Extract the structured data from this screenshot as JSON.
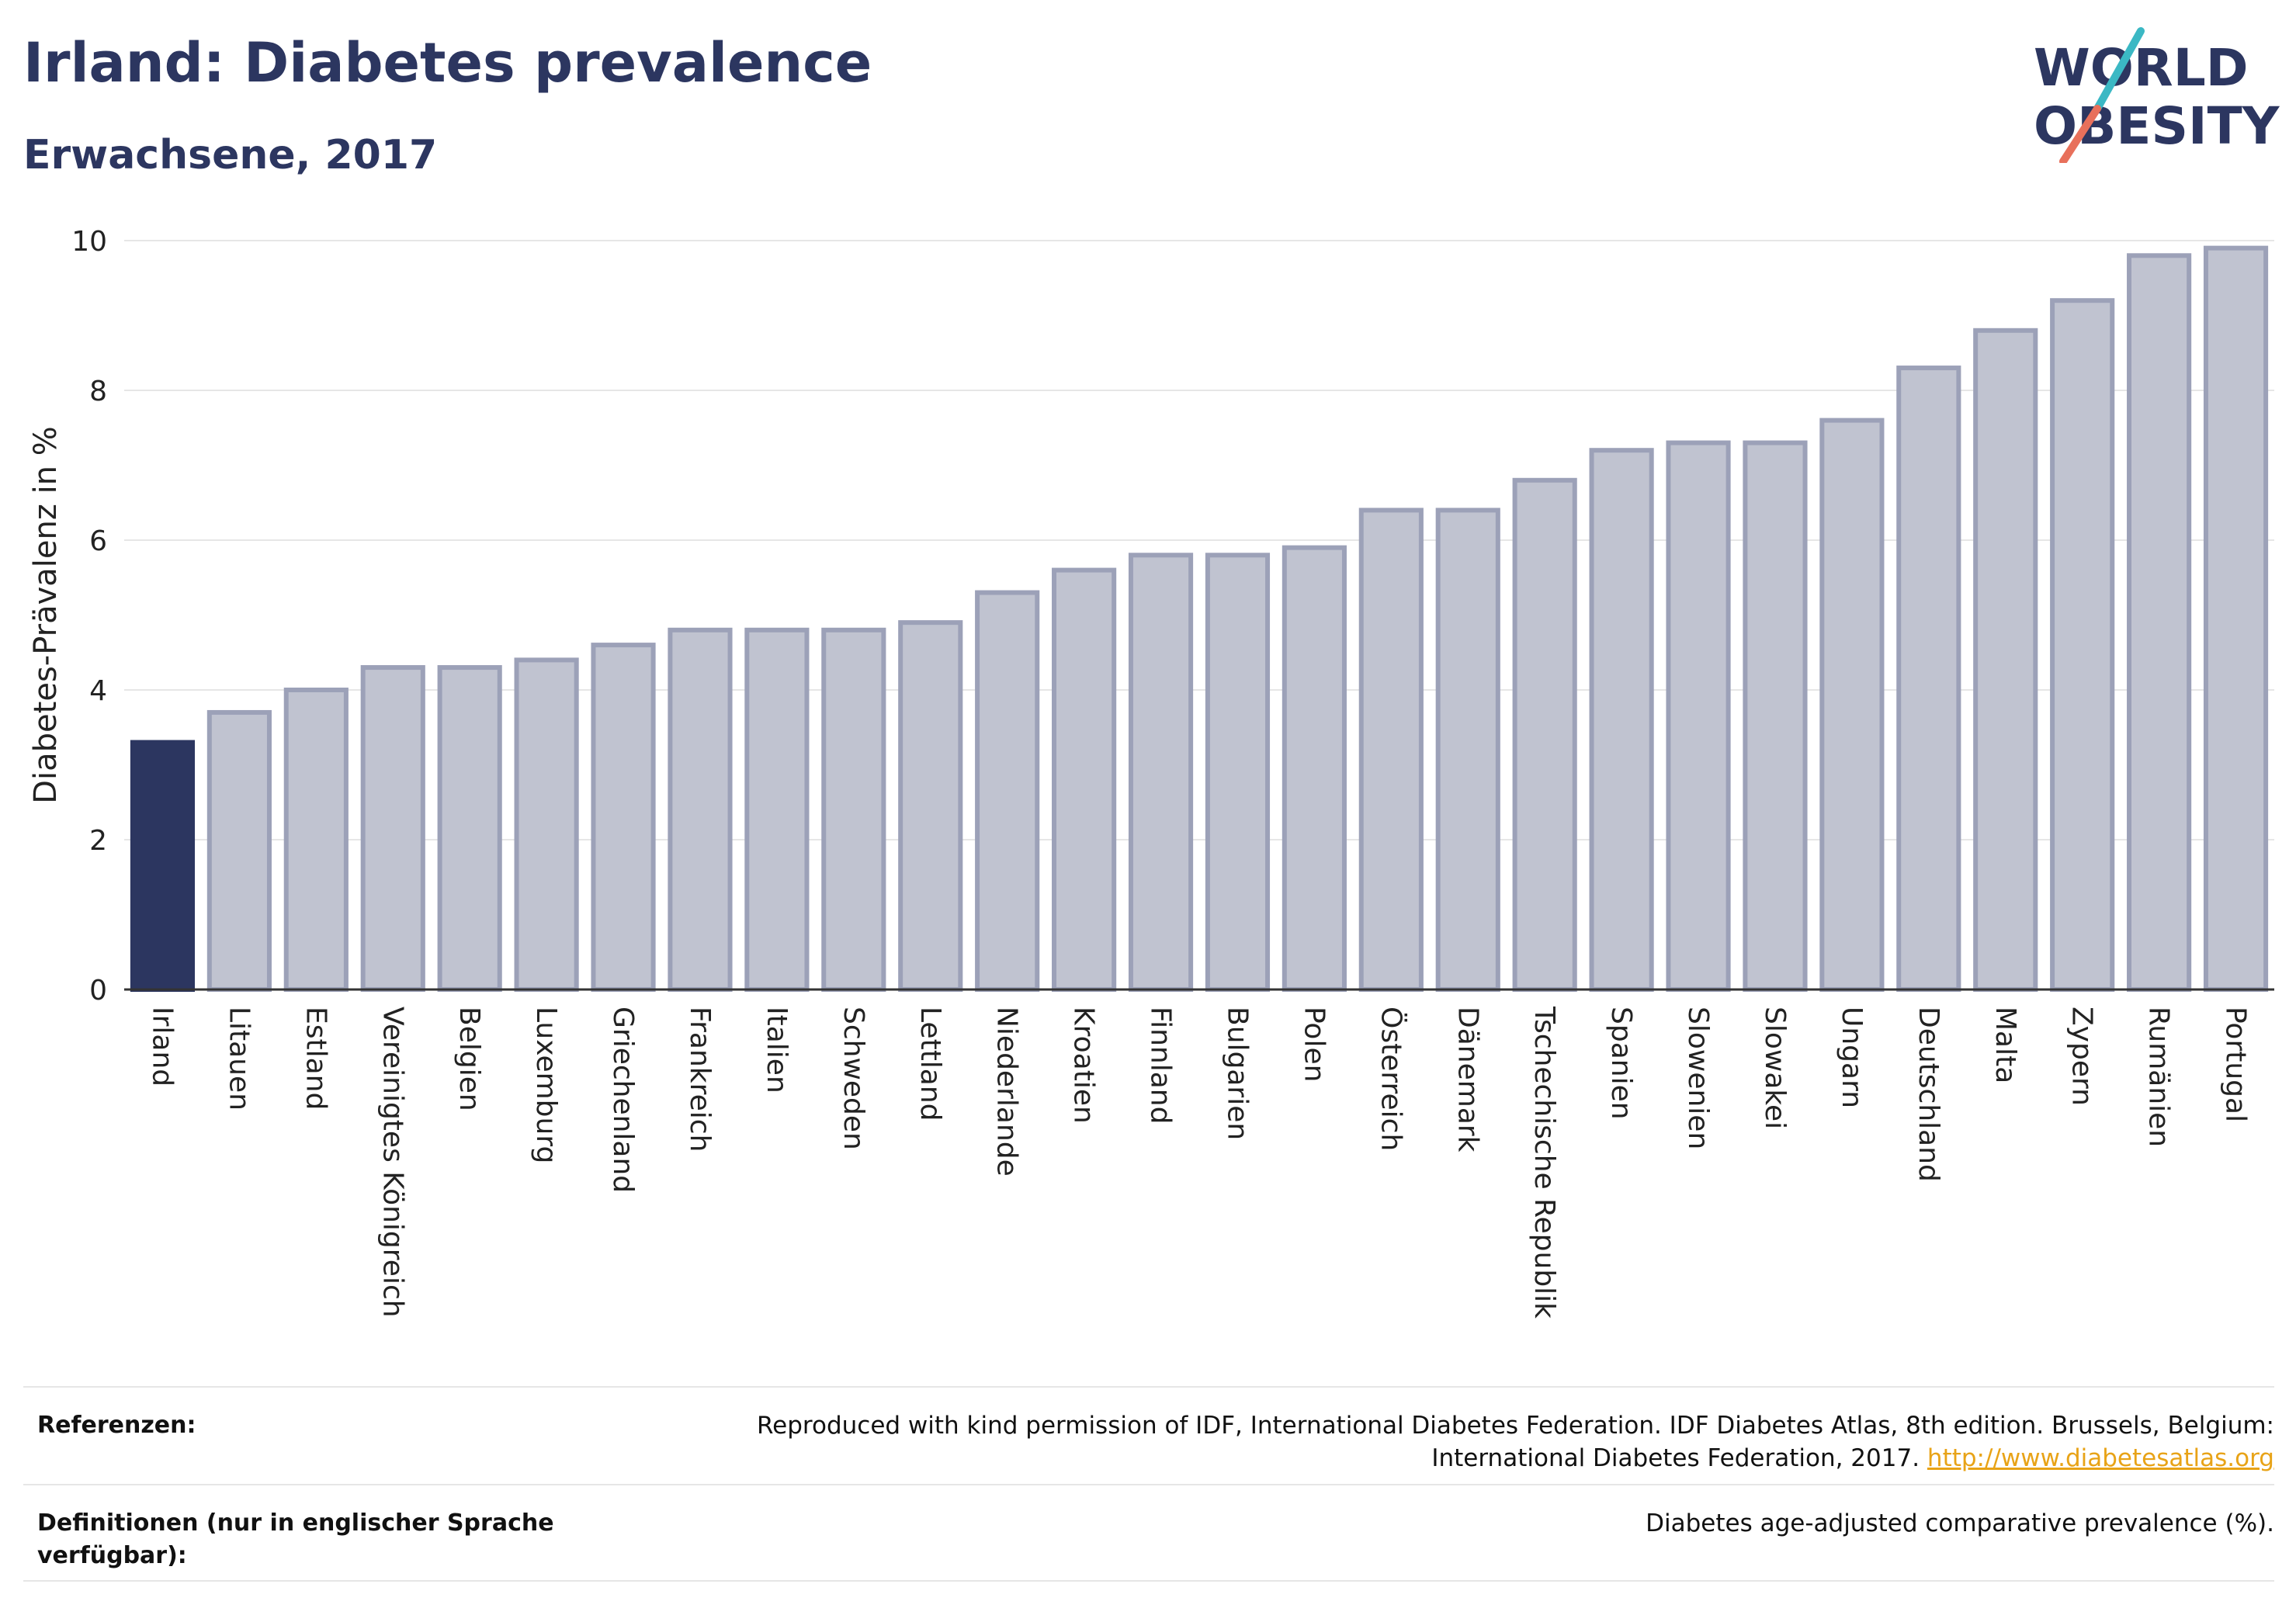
{
  "header": {
    "title": "Irland: Diabetes prevalence",
    "subtitle": "Erwachsene, 2017"
  },
  "logo": {
    "line1": "WORLD",
    "line2": "OBESITY",
    "colors": {
      "text": "#2c3660",
      "slash_top": "#3bb8c4",
      "slash_bottom": "#e8705b"
    }
  },
  "chart_data": {
    "type": "bar",
    "ylabel": "Diabetes-Prävalenz in %",
    "xlabel": "",
    "ylim": [
      0,
      10
    ],
    "yticks": [
      0,
      2,
      4,
      6,
      8,
      10
    ],
    "grid": true,
    "highlight": "Irland",
    "colors": {
      "highlight": "#2c3660",
      "bar": "#c0c3d0",
      "bar_border": "#9ca1b8"
    },
    "categories": [
      "Irland",
      "Litauen",
      "Estland",
      "Vereinigtes Königreich",
      "Belgien",
      "Luxemburg",
      "Griechenland",
      "Frankreich",
      "Italien",
      "Schweden",
      "Lettland",
      "Niederlande",
      "Kroatien",
      "Finnland",
      "Bulgarien",
      "Polen",
      "Österreich",
      "Dänemark",
      "Tschechische Republik",
      "Spanien",
      "Slowenien",
      "Slowakei",
      "Ungarn",
      "Deutschland",
      "Malta",
      "Zypern",
      "Rumänien",
      "Portugal"
    ],
    "values": [
      3.3,
      3.7,
      4.0,
      4.3,
      4.3,
      4.4,
      4.6,
      4.8,
      4.8,
      4.8,
      4.9,
      5.3,
      5.6,
      5.8,
      5.8,
      5.9,
      6.4,
      6.4,
      6.8,
      7.2,
      7.3,
      7.3,
      7.6,
      8.3,
      8.8,
      9.2,
      9.8,
      9.9
    ]
  },
  "footer": {
    "references_label": "Referenzen:",
    "references_text_1": "Reproduced with kind permission of IDF, International Diabetes Federation. IDF Diabetes Atlas, 8th edition. Brussels, Belgium:",
    "references_text_2": "International Diabetes Federation, 2017.",
    "references_link": "http://www.diabetesatlas.org",
    "definitions_label": "Definitionen (nur in englischer Sprache verfügbar):",
    "definitions_text": "Diabetes age-adjusted comparative prevalence (%)."
  }
}
